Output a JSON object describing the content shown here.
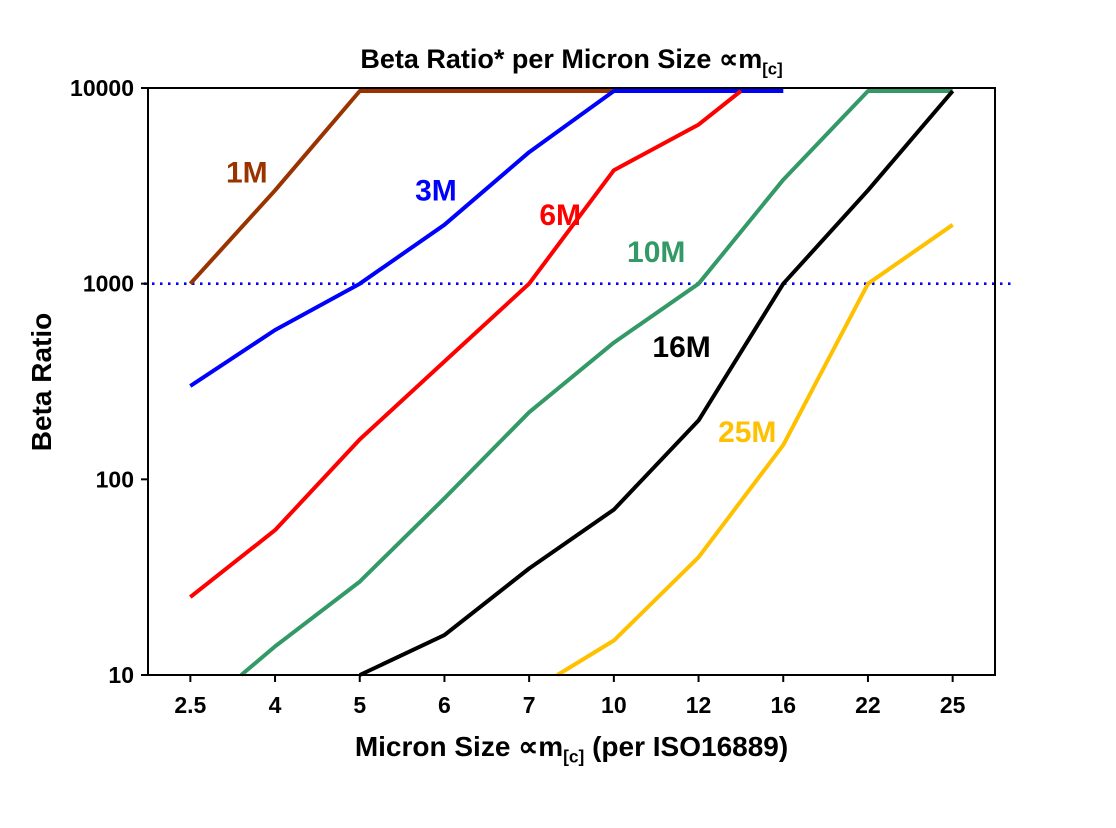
{
  "title": {
    "text": "Beta Ratio* per Micron Size ",
    "symbol": "∝m",
    "sub": "[c]"
  },
  "y_axis": {
    "label": "Beta Ratio"
  },
  "x_axis": {
    "prefix": "Micron Size ",
    "symbol": "∝m",
    "sub": "[c]",
    "suffix": " (per ISO16889)"
  },
  "chart_data": {
    "type": "line",
    "title": "Beta Ratio* per Micron Size ∝m[c]",
    "xlabel": "Micron Size ∝m[c] (per ISO16889)",
    "ylabel": "Beta Ratio",
    "x_scale": "categorical",
    "y_scale": "log",
    "x_ticks": [
      "2.5",
      "4",
      "5",
      "6",
      "7",
      "10",
      "12",
      "16",
      "22",
      "25"
    ],
    "x_values": [
      2.5,
      4,
      5,
      6,
      7,
      10,
      12,
      16,
      22,
      25
    ],
    "y_ticks": [
      "10",
      "100",
      "1000",
      "10000"
    ],
    "ylim": [
      10,
      10000
    ],
    "grid": false,
    "legend": false,
    "reference_line": {
      "y": 1000,
      "color": "#0000FF",
      "style": "dotted"
    },
    "series": [
      {
        "name": "1M",
        "color": "#993300",
        "points": [
          [
            2.5,
            1000
          ],
          [
            4,
            3000
          ],
          [
            5,
            10000
          ],
          [
            10,
            10000
          ]
        ]
      },
      {
        "name": "3M",
        "color": "#0000FF",
        "points": [
          [
            2.5,
            300
          ],
          [
            4,
            580
          ],
          [
            5,
            1000
          ],
          [
            6,
            2000
          ],
          [
            7,
            4700
          ],
          [
            10,
            10000
          ],
          [
            16,
            10000
          ]
        ]
      },
      {
        "name": "6M",
        "color": "#FF0000",
        "points": [
          [
            2.5,
            25
          ],
          [
            4,
            55
          ],
          [
            5,
            160
          ],
          [
            6,
            400
          ],
          [
            7,
            1000
          ],
          [
            10,
            3800
          ],
          [
            12,
            6500
          ],
          [
            14,
            10000
          ]
        ]
      },
      {
        "name": "10M",
        "color": "#339966",
        "points": [
          [
            3.4,
            10
          ],
          [
            4,
            14
          ],
          [
            5,
            30
          ],
          [
            6,
            80
          ],
          [
            7,
            220
          ],
          [
            10,
            500
          ],
          [
            12,
            1000
          ],
          [
            16,
            3400
          ],
          [
            22,
            10000
          ],
          [
            25,
            10000
          ]
        ]
      },
      {
        "name": "16M",
        "color": "#000000",
        "points": [
          [
            5,
            10
          ],
          [
            6,
            16
          ],
          [
            7,
            35
          ],
          [
            10,
            70
          ],
          [
            12,
            200
          ],
          [
            16,
            1000
          ],
          [
            22,
            3000
          ],
          [
            25,
            10000
          ]
        ]
      },
      {
        "name": "25M",
        "color": "#FFC000",
        "points": [
          [
            8,
            10
          ],
          [
            10,
            15
          ],
          [
            12,
            40
          ],
          [
            16,
            150
          ],
          [
            22,
            1000
          ],
          [
            25,
            2000
          ]
        ]
      }
    ],
    "labels": [
      {
        "text": "1M",
        "color": "#993300",
        "at": [
          3.5,
          3700
        ]
      },
      {
        "text": "3M",
        "color": "#0000FF",
        "at": [
          5.9,
          3000
        ]
      },
      {
        "text": "6M",
        "color": "#FF0000",
        "at": [
          8.1,
          2250
        ]
      },
      {
        "text": "10M",
        "color": "#339966",
        "at": [
          11,
          1450
        ]
      },
      {
        "text": "16M",
        "color": "#000000",
        "at": [
          11.6,
          475
        ]
      },
      {
        "text": "25M",
        "color": "#FFC000",
        "at": [
          14.3,
          175
        ]
      }
    ]
  }
}
